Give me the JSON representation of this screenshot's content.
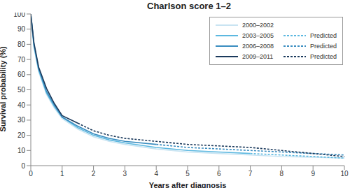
{
  "chart_data": {
    "type": "line",
    "title": "Charlson score 1–2",
    "xlabel": "Years after diagnosis",
    "ylabel": "Survival probability (%)",
    "x": [
      0,
      0.1,
      0.25,
      0.5,
      0.75,
      1,
      1.5,
      2,
      2.5,
      3,
      4,
      5,
      6,
      7,
      8,
      9,
      10
    ],
    "series": [
      {
        "name": "2000–2002",
        "color": "#c9e4f2",
        "line_style": "solid",
        "values": [
          100,
          78,
          62,
          47,
          38,
          31,
          24,
          19,
          16,
          14,
          11,
          9,
          8,
          7,
          6,
          5.5,
          5
        ]
      },
      {
        "name": "2003–2005",
        "color": "#5cb8e0",
        "line_style": "solid",
        "values": [
          100,
          79,
          63,
          48,
          39,
          32,
          25,
          20,
          17,
          15,
          12,
          10,
          9,
          8,
          null,
          null,
          null
        ]
      },
      {
        "name": "2006–2008",
        "color": "#3a8dc0",
        "line_style": "solid",
        "values": [
          100,
          80,
          64,
          49,
          40,
          32,
          26,
          21,
          18,
          16,
          14,
          null,
          null,
          null,
          null,
          null,
          null
        ]
      },
      {
        "name": "2009–2011",
        "color": "#1b3a5c",
        "line_style": "solid",
        "values": [
          100,
          81,
          65,
          51,
          41,
          33,
          28,
          null,
          null,
          null,
          null,
          null,
          null,
          null,
          null,
          null,
          null
        ]
      },
      {
        "name": "Predicted",
        "color": "#5cb8e0",
        "line_style": "dashed",
        "values": [
          null,
          null,
          null,
          null,
          null,
          null,
          null,
          null,
          null,
          null,
          null,
          null,
          null,
          8,
          7,
          6,
          5
        ]
      },
      {
        "name": "Predicted",
        "color": "#3a8dc0",
        "line_style": "dashed",
        "values": [
          null,
          null,
          null,
          null,
          null,
          null,
          null,
          null,
          null,
          null,
          14,
          12,
          11,
          10,
          9,
          8,
          7
        ]
      },
      {
        "name": "Predicted",
        "color": "#1b3a5c",
        "line_style": "dashed",
        "values": [
          null,
          null,
          null,
          null,
          null,
          null,
          28,
          23,
          20,
          18,
          16,
          14,
          13,
          12,
          10,
          8,
          6
        ]
      }
    ],
    "xlim": [
      0,
      10
    ],
    "ylim": [
      0,
      100
    ],
    "xticks": [
      0,
      1,
      2,
      3,
      4,
      5,
      6,
      7,
      8,
      9,
      10
    ],
    "yticks": [
      0,
      10,
      20,
      30,
      40,
      50,
      60,
      70,
      80,
      90,
      100
    ],
    "legend": "upper right",
    "grid": false
  }
}
